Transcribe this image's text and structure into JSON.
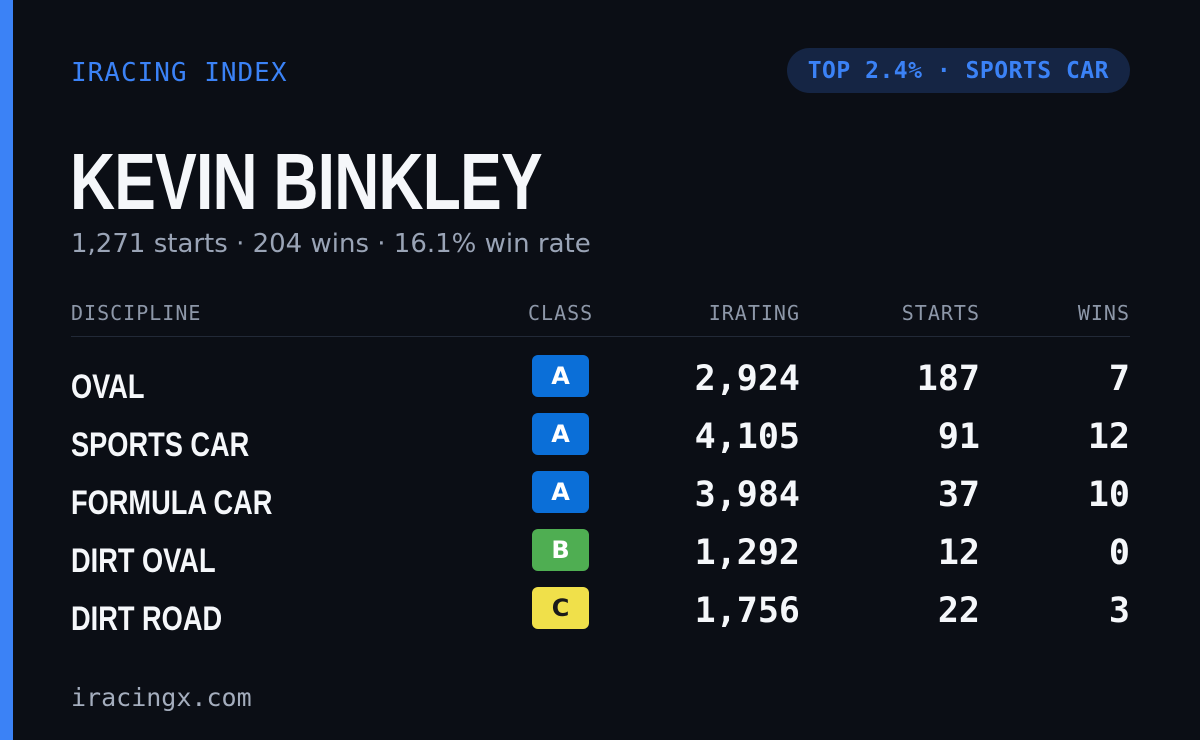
{
  "brand": "IRACING INDEX",
  "rank_badge": "TOP 2.4% · SPORTS CAR",
  "driver": {
    "name": "KEVIN BINKLEY",
    "summary": "1,271 starts · 204 wins · 16.1% win rate"
  },
  "table": {
    "headers": {
      "discipline": "DISCIPLINE",
      "class": "CLASS",
      "irating": "IRATING",
      "starts": "STARTS",
      "wins": "WINS"
    },
    "rows": [
      {
        "discipline": "OVAL",
        "class": "A",
        "irating": "2,924",
        "starts": "187",
        "wins": "7"
      },
      {
        "discipline": "SPORTS CAR",
        "class": "A",
        "irating": "4,105",
        "starts": "91",
        "wins": "12"
      },
      {
        "discipline": "FORMULA CAR",
        "class": "A",
        "irating": "3,984",
        "starts": "37",
        "wins": "10"
      },
      {
        "discipline": "DIRT OVAL",
        "class": "B",
        "irating": "1,292",
        "starts": "12",
        "wins": "0"
      },
      {
        "discipline": "DIRT ROAD",
        "class": "C",
        "irating": "1,756",
        "starts": "22",
        "wins": "3"
      }
    ]
  },
  "class_colors": {
    "A": {
      "bg": "#0b6fd8",
      "fg": "#ffffff"
    },
    "B": {
      "bg": "#4fae52",
      "fg": "#ffffff"
    },
    "C": {
      "bg": "#f0e04a",
      "fg": "#1a1a1a"
    }
  },
  "colors": {
    "accent": "#3b82f6",
    "background": "#0b0e15"
  },
  "footer": "iracingx.com"
}
